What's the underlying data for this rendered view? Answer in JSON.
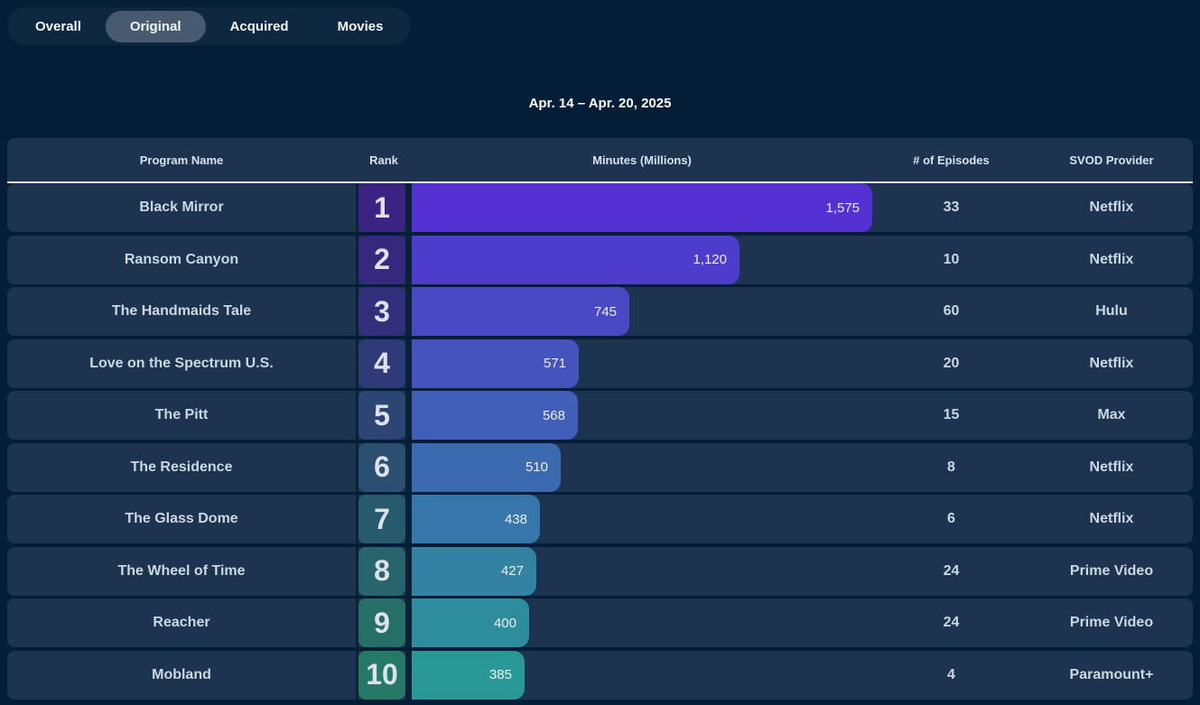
{
  "tabs": {
    "items": [
      {
        "id": "overall",
        "label": "Overall",
        "active": false
      },
      {
        "id": "original",
        "label": "Original",
        "active": true
      },
      {
        "id": "acquired",
        "label": "Acquired",
        "active": false
      },
      {
        "id": "movies",
        "label": "Movies",
        "active": false
      }
    ]
  },
  "date_range": "Apr. 14 – Apr. 20, 2025",
  "table": {
    "columns": [
      "Program Name",
      "Rank",
      "Minutes (Millions)",
      "# of Episodes",
      "SVOD Provider"
    ],
    "max_minutes": 1575,
    "rows": [
      {
        "program": "Black Mirror",
        "rank": "1",
        "minutes": "1,575",
        "minutes_value": 1575,
        "episodes": "33",
        "provider": "Netflix",
        "bar_color": "#5331d3",
        "badge_color": "#3a2383"
      },
      {
        "program": "Ransom Canyon",
        "rank": "2",
        "minutes": "1,120",
        "minutes_value": 1120,
        "episodes": "10",
        "provider": "Netflix",
        "bar_color": "#4e3ccc",
        "badge_color": "#36277f"
      },
      {
        "program": "The Handmaids Tale",
        "rank": "3",
        "minutes": "745",
        "minutes_value": 745,
        "episodes": "60",
        "provider": "Hulu",
        "bar_color": "#4a48c5",
        "badge_color": "#322f7c"
      },
      {
        "program": "Love on the Spectrum U.S.",
        "rank": "4",
        "minutes": "571",
        "minutes_value": 571,
        "episodes": "20",
        "provider": "Netflix",
        "bar_color": "#4553be",
        "badge_color": "#2f3a78"
      },
      {
        "program": "The Pitt",
        "rank": "5",
        "minutes": "568",
        "minutes_value": 568,
        "episodes": "15",
        "provider": "Max",
        "bar_color": "#415fb8",
        "badge_color": "#2c4574"
      },
      {
        "program": "The Residence",
        "rank": "6",
        "minutes": "510",
        "minutes_value": 510,
        "episodes": "8",
        "provider": "Netflix",
        "bar_color": "#3c6ab1",
        "badge_color": "#2a4f71"
      },
      {
        "program": "The Glass Dome",
        "rank": "7",
        "minutes": "438",
        "minutes_value": 438,
        "episodes": "6",
        "provider": "Netflix",
        "bar_color": "#3776aa",
        "badge_color": "#285a6e"
      },
      {
        "program": "The Wheel of Time",
        "rank": "8",
        "minutes": "427",
        "minutes_value": 427,
        "episodes": "24",
        "provider": "Prime Video",
        "bar_color": "#3381a3",
        "badge_color": "#27646b"
      },
      {
        "program": "Reacher",
        "rank": "9",
        "minutes": "400",
        "minutes_value": 400,
        "episodes": "24",
        "provider": "Prime Video",
        "bar_color": "#2e8d9d",
        "badge_color": "#256f68"
      },
      {
        "program": "Mobland",
        "rank": "10",
        "minutes": "385",
        "minutes_value": 385,
        "episodes": "4",
        "provider": "Paramount+",
        "bar_color": "#2a9896",
        "badge_color": "#247a65"
      }
    ]
  },
  "colors": {
    "page_bg": "#041e37",
    "row_bg": "#1c344f",
    "tab_bar_bg": "#0e2840",
    "active_tab_bg": "#475a6e",
    "header_border": "#e7edf4",
    "divider": "#0a2238",
    "text_light": "#cdd7e2"
  },
  "chart_data": {
    "type": "bar",
    "orientation": "horizontal",
    "title": "Apr. 14 – Apr. 20, 2025",
    "xlabel": "Minutes (Millions)",
    "ylabel": "Program Name",
    "xlim": [
      0,
      1575
    ],
    "grid": false,
    "legend": "none",
    "categories": [
      "Black Mirror",
      "Ransom Canyon",
      "The Handmaids Tale",
      "Love on the Spectrum U.S.",
      "The Pitt",
      "The Residence",
      "The Glass Dome",
      "The Wheel of Time",
      "Reacher",
      "Mobland"
    ],
    "values": [
      1575,
      1120,
      745,
      571,
      568,
      510,
      438,
      427,
      400,
      385
    ],
    "ranks": [
      1,
      2,
      3,
      4,
      5,
      6,
      7,
      8,
      9,
      10
    ],
    "episodes": [
      33,
      10,
      60,
      20,
      15,
      8,
      6,
      24,
      24,
      4
    ],
    "providers": [
      "Netflix",
      "Netflix",
      "Hulu",
      "Netflix",
      "Max",
      "Netflix",
      "Netflix",
      "Prime Video",
      "Prime Video",
      "Paramount+"
    ],
    "bar_color_gradient": [
      "#5331d3",
      "#2a9896"
    ]
  }
}
